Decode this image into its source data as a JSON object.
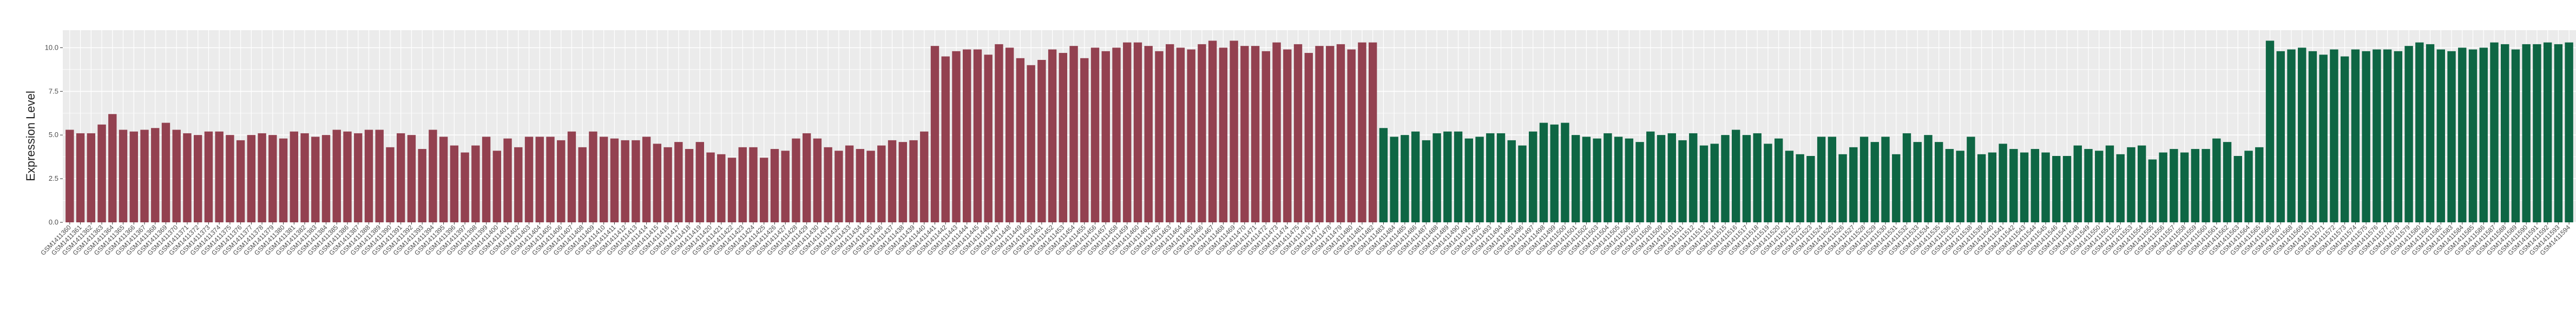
{
  "chart_data": {
    "type": "bar",
    "title": "",
    "xlabel": "",
    "ylabel": "Expression Level",
    "ylim": [
      0,
      11
    ],
    "yticks": [
      0.0,
      2.5,
      5.0,
      7.5,
      10.0
    ],
    "ytick_labels": [
      "0.0",
      "2.5",
      "5.0",
      "7.5",
      "10.0"
    ],
    "grid": true,
    "legend": "none",
    "colors": {
      "group_a": "#934150",
      "group_b": "#0e6644",
      "panel": "#ebebeb",
      "grid": "#ffffff"
    },
    "category_prefix": "GSM",
    "category_start": 1411360,
    "groups": [
      {
        "color_key": "group_a",
        "values": [
          5.3,
          5.1,
          5.1,
          5.6,
          6.2,
          5.3,
          5.2,
          5.3,
          5.4,
          5.7,
          5.3,
          5.1,
          5.0,
          5.2,
          5.2,
          5.0,
          4.7,
          5.0,
          5.1,
          5.0,
          4.8,
          5.2,
          5.1,
          4.9,
          5.0,
          5.3,
          5.2,
          5.1,
          5.3,
          5.3,
          4.3,
          5.1,
          5.0,
          4.2,
          5.3,
          4.9,
          4.4,
          4.0,
          4.4,
          4.9,
          4.1,
          4.8,
          4.3,
          4.9,
          4.9,
          4.9,
          4.7,
          5.2,
          4.3,
          5.2,
          4.9,
          4.8,
          4.7,
          4.7,
          4.9,
          4.5,
          4.3,
          4.6,
          4.2,
          4.6,
          4.0,
          3.9,
          3.7,
          4.3,
          4.3,
          3.7,
          4.2,
          4.1,
          4.8,
          5.1,
          4.8,
          4.3,
          4.1,
          4.4,
          4.2,
          4.1,
          4.4,
          4.7,
          4.6,
          4.7,
          5.2,
          10.1,
          9.5,
          9.8,
          9.9,
          9.9,
          9.6,
          10.2,
          10.0,
          9.4,
          9.0,
          9.3,
          9.9,
          9.7,
          10.1,
          9.4,
          10.0,
          9.8,
          10.0,
          10.3,
          10.3,
          10.1,
          9.8,
          10.2,
          10.0,
          9.9,
          10.2,
          10.4,
          10.0,
          10.4,
          10.1,
          10.1,
          9.8,
          10.3,
          9.9,
          10.2,
          9.7,
          10.1,
          10.1,
          10.2,
          9.9,
          10.3,
          10.3
        ]
      },
      {
        "color_key": "group_b",
        "values": [
          5.4,
          4.9,
          5.0,
          5.2,
          4.7,
          5.1,
          5.2,
          5.2,
          4.8,
          4.9,
          5.1,
          5.1,
          4.7,
          4.4,
          5.2,
          5.7,
          5.6,
          5.7,
          5.0,
          4.9,
          4.8,
          5.1,
          4.9,
          4.8,
          4.6,
          5.2,
          5.0,
          5.1,
          4.7,
          5.1,
          4.4,
          4.5,
          5.0,
          5.3,
          5.0,
          5.1,
          4.5,
          4.8,
          4.1,
          3.9,
          3.8,
          4.9,
          4.9,
          3.9,
          4.3,
          4.9,
          4.6,
          4.9,
          3.9,
          5.1,
          4.6,
          5.0,
          4.6,
          4.2,
          4.1,
          4.9,
          3.9,
          4.0,
          4.5,
          4.2,
          4.0,
          4.2,
          4.0,
          3.8,
          3.8,
          4.4,
          4.2,
          4.1,
          4.4,
          3.9,
          4.3,
          4.4,
          3.6,
          4.0,
          4.2,
          4.0,
          4.2,
          4.2,
          4.8,
          4.6,
          3.8,
          4.1,
          4.3,
          10.4,
          9.8,
          9.9,
          10.0,
          9.8,
          9.6,
          9.9,
          9.5,
          9.9,
          9.8,
          9.9,
          9.9,
          9.8,
          10.1,
          10.3,
          10.2,
          9.9,
          9.8,
          10.0,
          9.9,
          10.0,
          10.3,
          10.2,
          9.9,
          10.2,
          10.2,
          10.3,
          10.2,
          10.3
        ]
      }
    ]
  }
}
